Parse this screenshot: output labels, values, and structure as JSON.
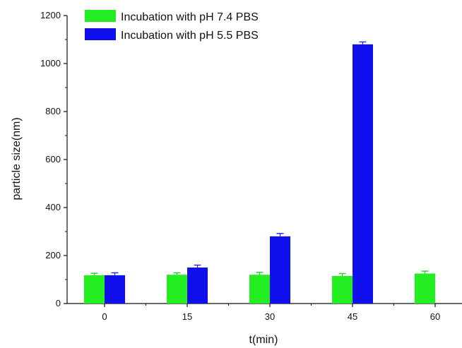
{
  "chart_data": {
    "type": "bar",
    "xlabel": "t(min)",
    "ylabel": "particle size(nm)",
    "categories": [
      "0",
      "15",
      "30",
      "45",
      "60"
    ],
    "ylim": [
      0,
      1200
    ],
    "yticks": [
      "0",
      "200",
      "400",
      "600",
      "800",
      "1000",
      "1200"
    ],
    "series": [
      {
        "name": "Incubation with pH 7.4 PBS",
        "color": "#22ee22",
        "values": [
          118,
          120,
          120,
          115,
          125
        ],
        "errors": [
          8,
          8,
          10,
          10,
          10
        ]
      },
      {
        "name": "Incubation with pH 5.5 PBS",
        "color": "#1010ee",
        "values": [
          118,
          150,
          280,
          1080,
          null
        ],
        "errors": [
          10,
          10,
          12,
          10,
          null
        ]
      }
    ],
    "legend": "top-left",
    "grid": false
  }
}
